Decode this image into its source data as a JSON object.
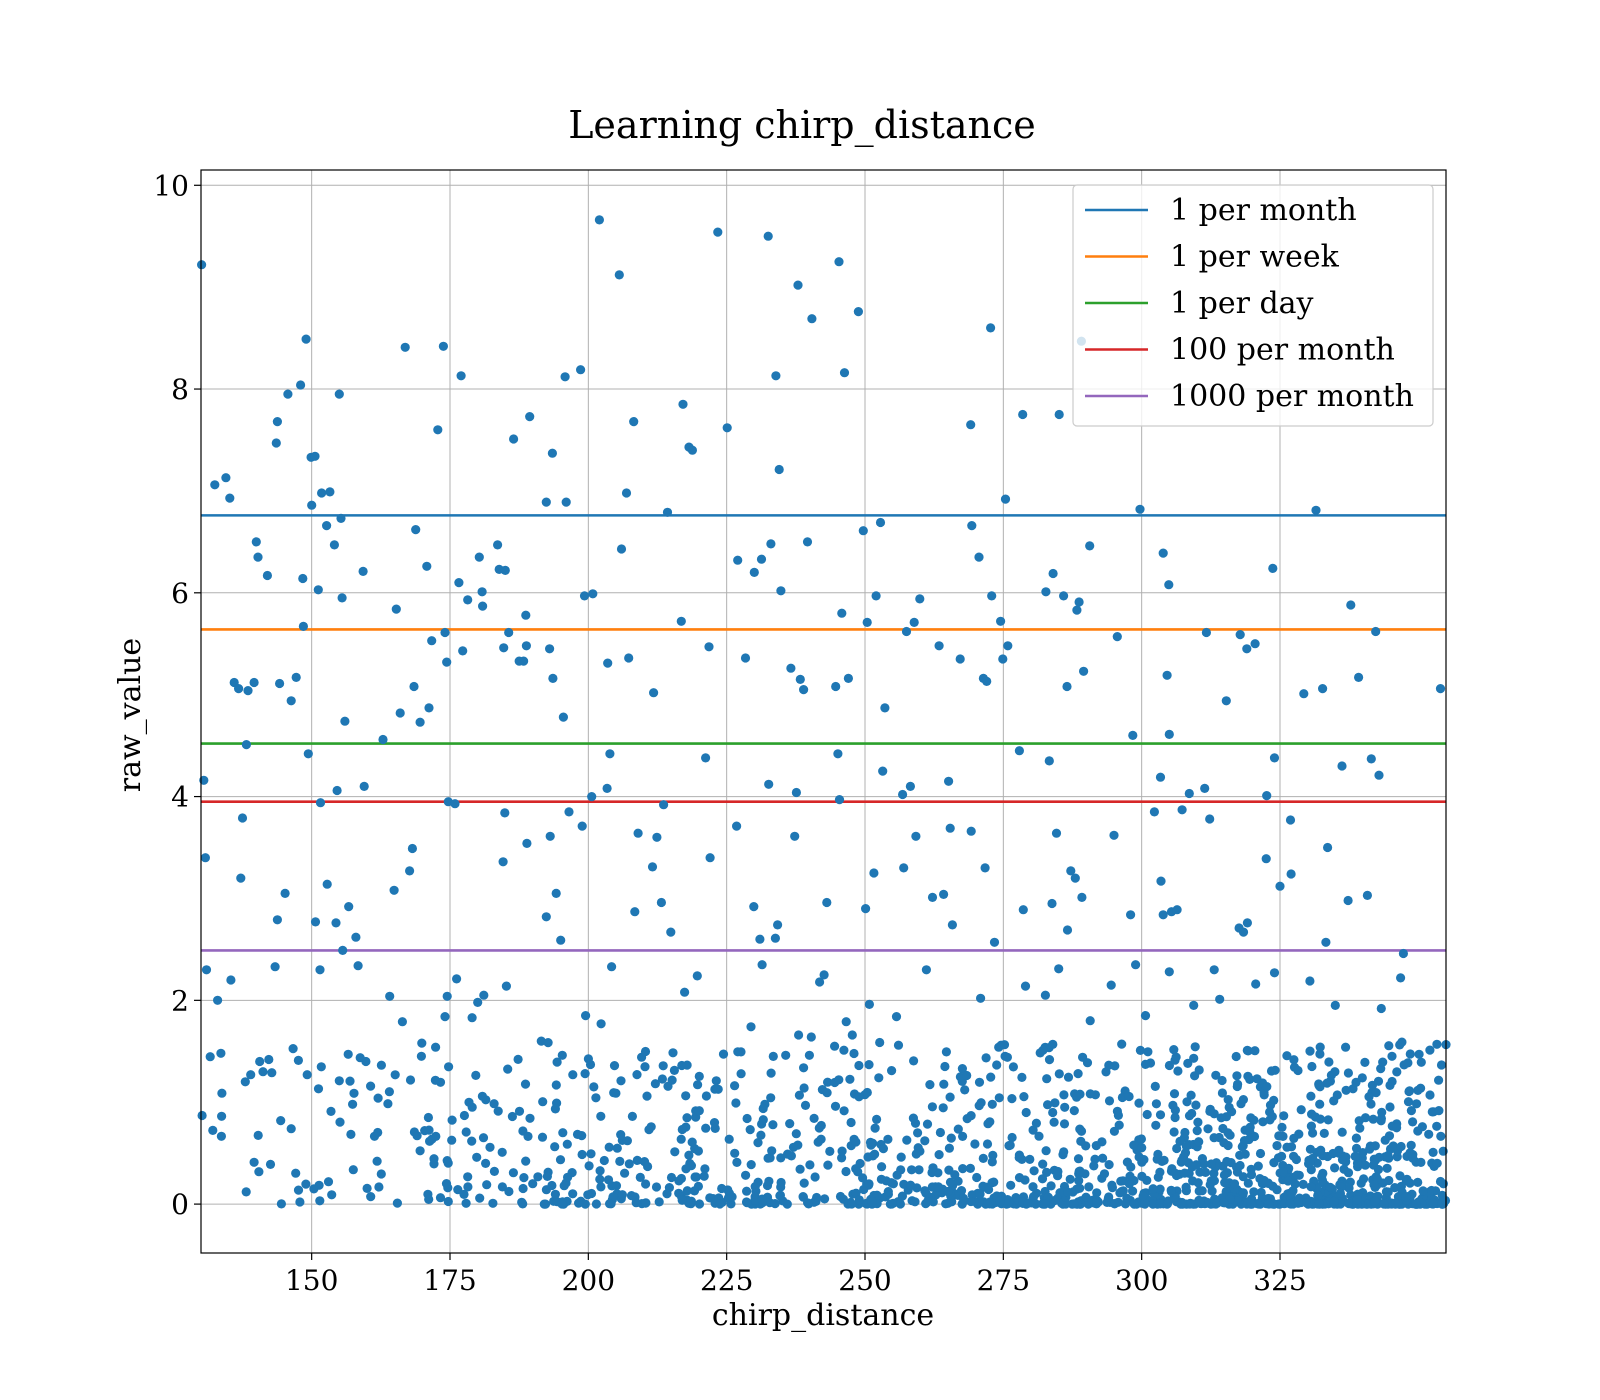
{
  "chart_data": {
    "type": "scatter",
    "title": "Learning chirp_distance",
    "xlabel": "chirp_distance",
    "ylabel": "raw_value",
    "xlim": [
      130,
      355
    ],
    "ylim": [
      -0.48,
      10.15
    ],
    "xticks": [
      150,
      175,
      200,
      225,
      250,
      275,
      300,
      325
    ],
    "yticks": [
      0,
      2,
      4,
      6,
      8,
      10
    ],
    "grid": true,
    "legend_position": "top-right",
    "marker_color": "#1f77b4",
    "hlines": [
      {
        "name": "1 per month",
        "y": 6.76,
        "color": "#1f77b4"
      },
      {
        "name": "1 per week",
        "y": 5.64,
        "color": "#ff7f0e"
      },
      {
        "name": "1 per day",
        "y": 4.52,
        "color": "#2ca02c"
      },
      {
        "name": "100 per month",
        "y": 3.95,
        "color": "#d62728"
      },
      {
        "name": "1000 per month",
        "y": 2.49,
        "color": "#9467bd"
      }
    ],
    "points": [
      [
        130.1,
        9.22
      ],
      [
        130.5,
        4.16
      ],
      [
        130.8,
        3.4
      ],
      [
        131.0,
        2.3
      ],
      [
        130.2,
        0.87
      ],
      [
        132.5,
        7.06
      ],
      [
        134.5,
        7.13
      ],
      [
        135.2,
        6.93
      ],
      [
        136.0,
        5.12
      ],
      [
        136.8,
        5.06
      ],
      [
        137.5,
        3.79
      ],
      [
        137.2,
        3.2
      ],
      [
        138.2,
        4.51
      ],
      [
        138.5,
        5.04
      ],
      [
        139.6,
        5.12
      ],
      [
        140.0,
        6.5
      ],
      [
        140.3,
        6.35
      ],
      [
        142.0,
        6.17
      ],
      [
        143.8,
        7.68
      ],
      [
        143.6,
        7.47
      ],
      [
        144.2,
        5.11
      ],
      [
        145.7,
        7.95
      ],
      [
        146.3,
        4.94
      ],
      [
        147.2,
        5.17
      ],
      [
        148.0,
        8.04
      ],
      [
        148.4,
        6.14
      ],
      [
        148.5,
        5.67
      ],
      [
        149.0,
        8.49
      ],
      [
        149.4,
        4.42
      ],
      [
        149.9,
        7.33
      ],
      [
        150.0,
        6.86
      ],
      [
        150.6,
        7.34
      ],
      [
        151.2,
        6.03
      ],
      [
        151.6,
        3.94
      ],
      [
        151.8,
        6.98
      ],
      [
        152.7,
        6.66
      ],
      [
        153.3,
        6.99
      ],
      [
        154.1,
        6.47
      ],
      [
        154.6,
        4.06
      ],
      [
        155.0,
        7.95
      ],
      [
        155.3,
        6.73
      ],
      [
        155.5,
        5.95
      ],
      [
        156.0,
        4.74
      ],
      [
        156.7,
        2.92
      ],
      [
        158.0,
        2.62
      ],
      [
        158.4,
        2.34
      ],
      [
        159.3,
        6.21
      ],
      [
        159.5,
        4.1
      ],
      [
        162.9,
        4.56
      ],
      [
        165.3,
        5.84
      ],
      [
        166.0,
        4.82
      ],
      [
        166.9,
        8.41
      ],
      [
        168.5,
        5.08
      ],
      [
        168.8,
        6.62
      ],
      [
        169.6,
        4.73
      ],
      [
        170.8,
        6.26
      ],
      [
        171.2,
        4.87
      ],
      [
        171.7,
        5.53
      ],
      [
        172.8,
        7.6
      ],
      [
        173.8,
        8.42
      ],
      [
        174.1,
        5.61
      ],
      [
        174.4,
        5.32
      ],
      [
        174.7,
        3.95
      ],
      [
        175.9,
        3.93
      ],
      [
        176.6,
        6.1
      ],
      [
        177.0,
        8.13
      ],
      [
        177.3,
        5.43
      ],
      [
        178.2,
        5.93
      ],
      [
        180.3,
        6.35
      ],
      [
        180.8,
        6.01
      ],
      [
        180.9,
        5.87
      ],
      [
        183.6,
        6.47
      ],
      [
        183.9,
        6.23
      ],
      [
        184.7,
        5.46
      ],
      [
        185.0,
        6.22
      ],
      [
        185.6,
        5.61
      ],
      [
        186.5,
        7.51
      ],
      [
        187.5,
        5.33
      ],
      [
        188.3,
        5.33
      ],
      [
        188.7,
        5.78
      ],
      [
        188.8,
        5.48
      ],
      [
        189.4,
        7.73
      ],
      [
        192.4,
        6.89
      ],
      [
        193.0,
        5.45
      ],
      [
        193.5,
        7.37
      ],
      [
        193.6,
        5.16
      ],
      [
        195.5,
        4.78
      ],
      [
        195.8,
        8.12
      ],
      [
        196.0,
        6.89
      ],
      [
        198.6,
        8.19
      ],
      [
        199.3,
        5.97
      ],
      [
        200.8,
        5.99
      ],
      [
        202.0,
        9.66
      ],
      [
        203.5,
        5.31
      ],
      [
        205.6,
        9.12
      ],
      [
        206.0,
        6.43
      ],
      [
        206.9,
        6.98
      ],
      [
        207.3,
        5.36
      ],
      [
        208.2,
        7.68
      ],
      [
        211.8,
        5.02
      ],
      [
        214.3,
        6.79
      ],
      [
        216.8,
        5.72
      ],
      [
        217.1,
        7.85
      ],
      [
        218.2,
        7.43
      ],
      [
        218.8,
        7.4
      ],
      [
        221.8,
        5.47
      ],
      [
        223.4,
        9.54
      ],
      [
        225.1,
        7.62
      ],
      [
        227.0,
        6.32
      ],
      [
        228.4,
        5.36
      ],
      [
        230.0,
        6.2
      ],
      [
        231.3,
        6.33
      ],
      [
        232.5,
        9.5
      ],
      [
        233.0,
        6.48
      ],
      [
        233.9,
        8.13
      ],
      [
        234.5,
        7.21
      ],
      [
        234.8,
        6.02
      ],
      [
        236.6,
        5.26
      ],
      [
        237.6,
        4.04
      ],
      [
        237.9,
        9.02
      ],
      [
        238.3,
        5.15
      ],
      [
        238.9,
        5.05
      ],
      [
        239.6,
        6.5
      ],
      [
        240.4,
        8.69
      ],
      [
        244.7,
        5.08
      ],
      [
        245.3,
        9.25
      ],
      [
        245.8,
        5.8
      ],
      [
        246.3,
        8.16
      ],
      [
        247.0,
        5.16
      ],
      [
        248.8,
        8.76
      ],
      [
        249.7,
        6.61
      ],
      [
        250.4,
        5.71
      ],
      [
        252.0,
        5.97
      ],
      [
        252.8,
        6.69
      ],
      [
        253.6,
        4.87
      ],
      [
        256.8,
        4.02
      ],
      [
        257.5,
        5.62
      ],
      [
        258.2,
        4.1
      ],
      [
        258.9,
        5.71
      ],
      [
        259.9,
        5.94
      ],
      [
        263.4,
        5.48
      ],
      [
        265.1,
        4.15
      ],
      [
        267.2,
        5.35
      ],
      [
        269.1,
        7.65
      ],
      [
        269.3,
        6.66
      ],
      [
        270.6,
        6.35
      ],
      [
        271.4,
        5.16
      ],
      [
        272.0,
        5.13
      ],
      [
        272.7,
        8.6
      ],
      [
        272.9,
        5.97
      ],
      [
        274.5,
        5.72
      ],
      [
        274.9,
        5.35
      ],
      [
        275.4,
        6.92
      ],
      [
        275.8,
        5.48
      ],
      [
        277.9,
        4.45
      ],
      [
        278.5,
        7.75
      ],
      [
        282.7,
        6.01
      ],
      [
        283.3,
        4.35
      ],
      [
        284.0,
        6.19
      ],
      [
        285.9,
        5.97
      ],
      [
        286.5,
        5.08
      ],
      [
        288.3,
        5.83
      ],
      [
        288.7,
        5.91
      ],
      [
        289.5,
        5.23
      ],
      [
        290.6,
        6.46
      ],
      [
        295.6,
        5.57
      ],
      [
        298.4,
        4.6
      ],
      [
        299.7,
        6.82
      ],
      [
        303.4,
        4.19
      ],
      [
        303.9,
        6.39
      ],
      [
        304.6,
        5.19
      ],
      [
        304.9,
        6.08
      ],
      [
        305.0,
        4.61
      ],
      [
        311.7,
        5.61
      ],
      [
        315.3,
        4.94
      ],
      [
        317.8,
        5.59
      ],
      [
        319.0,
        5.45
      ],
      [
        320.5,
        5.5
      ],
      [
        322.6,
        4.01
      ],
      [
        323.7,
        6.24
      ],
      [
        324.0,
        4.38
      ],
      [
        329.3,
        5.01
      ],
      [
        331.5,
        6.81
      ],
      [
        332.7,
        5.06
      ],
      [
        336.2,
        4.3
      ],
      [
        337.8,
        5.88
      ],
      [
        339.2,
        5.17
      ],
      [
        341.5,
        4.37
      ],
      [
        342.3,
        5.62
      ],
      [
        342.9,
        4.21
      ],
      [
        354.0,
        5.06
      ],
      [
        285.1,
        7.75
      ],
      [
        289.1,
        8.47
      ],
      [
        133.0,
        2.0
      ],
      [
        133.6,
        1.48
      ],
      [
        135.4,
        2.2
      ],
      [
        138.0,
        1.2
      ],
      [
        139.6,
        0.41
      ],
      [
        140.6,
        1.4
      ],
      [
        141.2,
        1.3
      ],
      [
        142.8,
        1.29
      ],
      [
        143.4,
        2.33
      ],
      [
        143.8,
        2.79
      ],
      [
        144.4,
        0.82
      ],
      [
        145.2,
        3.05
      ],
      [
        146.3,
        0.74
      ],
      [
        149.2,
        1.27
      ],
      [
        150.7,
        2.77
      ],
      [
        151.5,
        2.3
      ],
      [
        152.8,
        3.14
      ],
      [
        153.5,
        0.91
      ],
      [
        154.4,
        2.76
      ],
      [
        155.0,
        1.21
      ],
      [
        155.6,
        2.49
      ],
      [
        156.6,
        1.47
      ],
      [
        157.4,
        0.98
      ],
      [
        159.8,
        1.4
      ],
      [
        162.0,
        1.04
      ],
      [
        164.1,
        2.04
      ],
      [
        164.9,
        3.08
      ],
      [
        166.4,
        1.79
      ],
      [
        167.7,
        3.27
      ],
      [
        168.2,
        3.49
      ],
      [
        169.9,
        1.58
      ],
      [
        171.1,
        0.85
      ],
      [
        172.4,
        1.54
      ],
      [
        174.1,
        1.84
      ],
      [
        174.5,
        2.04
      ],
      [
        176.2,
        2.21
      ],
      [
        177.6,
        0.87
      ],
      [
        179.0,
        1.83
      ],
      [
        180.0,
        1.98
      ],
      [
        181.1,
        2.05
      ],
      [
        184.6,
        3.36
      ],
      [
        184.9,
        3.84
      ],
      [
        185.2,
        2.14
      ],
      [
        187.3,
        1.42
      ],
      [
        188.9,
        3.54
      ],
      [
        191.5,
        1.6
      ],
      [
        192.4,
        2.82
      ],
      [
        193.1,
        3.61
      ],
      [
        194.2,
        3.05
      ],
      [
        195.0,
        2.59
      ],
      [
        195.3,
        1.46
      ],
      [
        196.5,
        3.85
      ],
      [
        197.2,
        1.27
      ],
      [
        198.9,
        3.71
      ],
      [
        199.5,
        1.85
      ],
      [
        200.4,
        1.37
      ],
      [
        200.6,
        4.0
      ],
      [
        202.3,
        1.77
      ],
      [
        203.4,
        4.08
      ],
      [
        203.9,
        4.42
      ],
      [
        204.2,
        2.33
      ],
      [
        205.9,
        1.21
      ],
      [
        208.4,
        2.87
      ],
      [
        209.0,
        3.64
      ],
      [
        210.6,
        1.06
      ],
      [
        211.6,
        3.31
      ],
      [
        212.4,
        3.6
      ],
      [
        213.2,
        2.96
      ],
      [
        213.6,
        3.92
      ],
      [
        214.9,
        2.67
      ],
      [
        216.9,
        1.36
      ],
      [
        217.4,
        2.08
      ],
      [
        219.7,
        2.24
      ],
      [
        221.2,
        4.38
      ],
      [
        222.0,
        3.4
      ],
      [
        222.8,
        0.8
      ],
      [
        226.8,
        3.71
      ],
      [
        227.6,
        1.28
      ],
      [
        228.7,
        0.84
      ],
      [
        229.4,
        1.74
      ],
      [
        229.9,
        2.92
      ],
      [
        231.0,
        2.6
      ],
      [
        231.4,
        2.35
      ],
      [
        232.6,
        4.12
      ],
      [
        233.8,
        2.61
      ],
      [
        234.2,
        2.74
      ],
      [
        236.4,
        0.79
      ],
      [
        237.3,
        3.61
      ],
      [
        238.0,
        1.66
      ],
      [
        239.0,
        1.14
      ],
      [
        240.3,
        1.64
      ],
      [
        241.8,
        2.18
      ],
      [
        242.6,
        2.25
      ],
      [
        243.1,
        2.96
      ],
      [
        244.5,
        1.55
      ],
      [
        245.1,
        4.42
      ],
      [
        245.4,
        3.97
      ],
      [
        246.6,
        1.79
      ],
      [
        247.7,
        1.66
      ],
      [
        248.9,
        1.36
      ],
      [
        250.1,
        2.9
      ],
      [
        250.8,
        1.96
      ],
      [
        251.6,
        3.25
      ],
      [
        252.5,
        1.24
      ],
      [
        253.2,
        4.25
      ],
      [
        255.7,
        1.84
      ],
      [
        257.0,
        3.3
      ],
      [
        259.2,
        3.61
      ],
      [
        261.1,
        2.3
      ],
      [
        262.2,
        3.01
      ],
      [
        264.2,
        3.04
      ],
      [
        265.4,
        3.69
      ],
      [
        265.8,
        2.74
      ],
      [
        267.6,
        1.33
      ],
      [
        269.2,
        3.66
      ],
      [
        270.9,
        2.02
      ],
      [
        271.7,
        3.3
      ],
      [
        273.4,
        2.57
      ],
      [
        274.6,
        1.56
      ],
      [
        278.6,
        2.89
      ],
      [
        279.0,
        2.14
      ],
      [
        282.6,
        2.05
      ],
      [
        283.8,
        2.95
      ],
      [
        284.6,
        3.64
      ],
      [
        285.0,
        2.31
      ],
      [
        286.6,
        2.69
      ],
      [
        287.2,
        3.27
      ],
      [
        288.0,
        3.2
      ],
      [
        289.2,
        3.01
      ],
      [
        290.7,
        1.8
      ],
      [
        294.5,
        2.15
      ],
      [
        295.0,
        3.62
      ],
      [
        296.4,
        1.57
      ],
      [
        298.0,
        2.84
      ],
      [
        298.9,
        2.35
      ],
      [
        300.7,
        1.85
      ],
      [
        302.3,
        3.85
      ],
      [
        303.5,
        3.17
      ],
      [
        303.9,
        2.84
      ],
      [
        305.0,
        2.28
      ],
      [
        305.4,
        2.87
      ],
      [
        306.4,
        2.89
      ],
      [
        307.3,
        3.87
      ],
      [
        308.6,
        4.03
      ],
      [
        309.4,
        1.95
      ],
      [
        311.4,
        4.08
      ],
      [
        312.3,
        3.78
      ],
      [
        313.1,
        2.3
      ],
      [
        314.1,
        2.01
      ],
      [
        317.6,
        2.71
      ],
      [
        318.4,
        2.67
      ],
      [
        319.1,
        2.76
      ],
      [
        320.6,
        2.16
      ],
      [
        322.5,
        3.39
      ],
      [
        324.0,
        2.27
      ],
      [
        325.0,
        3.12
      ],
      [
        326.9,
        3.77
      ],
      [
        327.0,
        3.24
      ],
      [
        330.4,
        2.19
      ],
      [
        333.3,
        2.57
      ],
      [
        333.6,
        3.5
      ],
      [
        335.0,
        1.95
      ],
      [
        337.3,
        2.98
      ],
      [
        340.8,
        3.03
      ],
      [
        343.3,
        1.92
      ],
      [
        346.8,
        2.22
      ],
      [
        347.3,
        2.46
      ]
    ],
    "dense_band": {
      "y_max": 1.6,
      "density_increasing_with_x": true,
      "count": 1400,
      "seed": 7
    }
  }
}
